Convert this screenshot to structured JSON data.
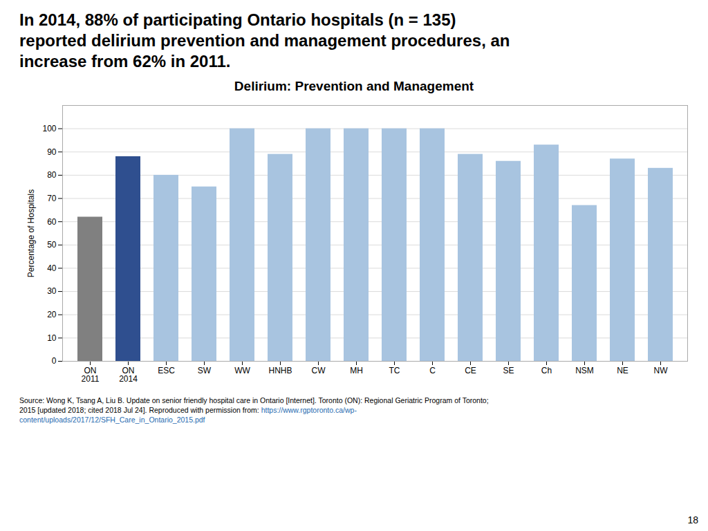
{
  "chart_data": {
    "type": "bar",
    "title": "Delirium: Prevention and Management",
    "subtitle": [
      "In 2014, 88% of participating Ontario hospitals (n = 135)",
      "reported delirium prevention and management procedures, an",
      "increase from 62% in 2011."
    ],
    "ylabel": "Percentage of Hospitals",
    "categories": [
      "ON\n2011",
      "ON\n2014",
      "ESC",
      "SW",
      "WW",
      "HNHB",
      "CW",
      "MH",
      "TC",
      "C",
      "CE",
      "SE",
      "Ch",
      "NSM",
      "NE",
      "NW"
    ],
    "values": [
      62,
      88,
      80,
      75,
      100,
      89,
      100,
      100,
      100,
      100,
      89,
      86,
      93,
      67,
      87,
      83
    ],
    "colors": [
      "#808080",
      "#2F4F8F",
      "#a8c4e0",
      "#a8c4e0",
      "#a8c4e0",
      "#a8c4e0",
      "#a8c4e0",
      "#a8c4e0",
      "#a8c4e0",
      "#a8c4e0",
      "#a8c4e0",
      "#a8c4e0",
      "#a8c4e0",
      "#a8c4e0",
      "#a8c4e0",
      "#a8c4e0"
    ],
    "ylim": [
      0,
      110
    ],
    "yticks": [
      0,
      10,
      20,
      30,
      40,
      50,
      60,
      70,
      80,
      90,
      100
    ],
    "grid": true,
    "caption": [
      [
        {
          "text": "Source: Wong K, Tsang A, Liu B. Update on senior friendly hospital care in Ontario [Internet]. Toronto (ON): Regional Geriatric Program of Toronto;",
          "color": "#000000"
        }
      ],
      [
        {
          "text": "2015 [updated 2018; cited 2018 Jul 24]. Reproduced with permission from: ",
          "color": "#000000"
        },
        {
          "text": "https://www.rgptoronto.ca/wp-",
          "color": "#1F6BB0"
        }
      ],
      [
        {
          "text": "content/uploads/2017/12/SFH_Care_in_Ontario_2015.pdf",
          "color": "#1F6BB0"
        }
      ]
    ],
    "page_number": "18"
  }
}
